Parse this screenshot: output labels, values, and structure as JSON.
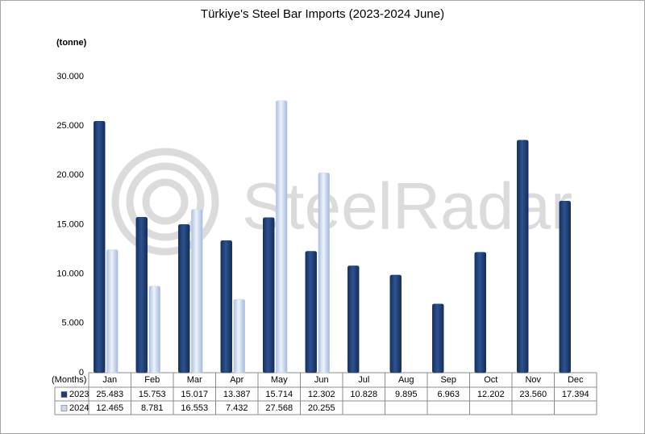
{
  "chart_data": {
    "type": "bar",
    "title": "Türkiye's Steel Bar Imports (2023-2024 June)",
    "y_label": "(tonne)",
    "x_label": "(Months)",
    "watermark": "SteelRadar",
    "categories": [
      "Jan",
      "Feb",
      "Mar",
      "Apr",
      "May",
      "Jun",
      "Jul",
      "Aug",
      "Sep",
      "Oct",
      "Nov",
      "Dec"
    ],
    "series": [
      {
        "name": "2023",
        "color": "#1f3f73",
        "values": [
          25483,
          15753,
          15017,
          13387,
          15714,
          12302,
          10828,
          9895,
          6963,
          12202,
          23560,
          17394
        ],
        "value_labels": [
          "25.483",
          "15.753",
          "15.017",
          "13.387",
          "15.714",
          "12.302",
          "10.828",
          "9.895",
          "6.963",
          "12.202",
          "23.560",
          "17.394"
        ]
      },
      {
        "name": "2024",
        "color": "#c9d9ef",
        "values": [
          12465,
          8781,
          16553,
          7432,
          27568,
          20255,
          null,
          null,
          null,
          null,
          null,
          null
        ],
        "value_labels": [
          "12.465",
          "8.781",
          "16.553",
          "7.432",
          "27.568",
          "20.255",
          null,
          null,
          null,
          null,
          null,
          null
        ]
      }
    ],
    "ylim": [
      0,
      30000
    ],
    "yticks": [
      0,
      {
        "value": 5000,
        "label": "5.000"
      },
      {
        "value": 10000,
        "label": "10.000"
      },
      {
        "value": 15000,
        "label": "15.000"
      },
      {
        "value": 20000,
        "label": "20.000"
      },
      {
        "value": 25000,
        "label": "25.000"
      },
      {
        "value": 30000,
        "label": "30.000"
      }
    ],
    "grid": false
  }
}
